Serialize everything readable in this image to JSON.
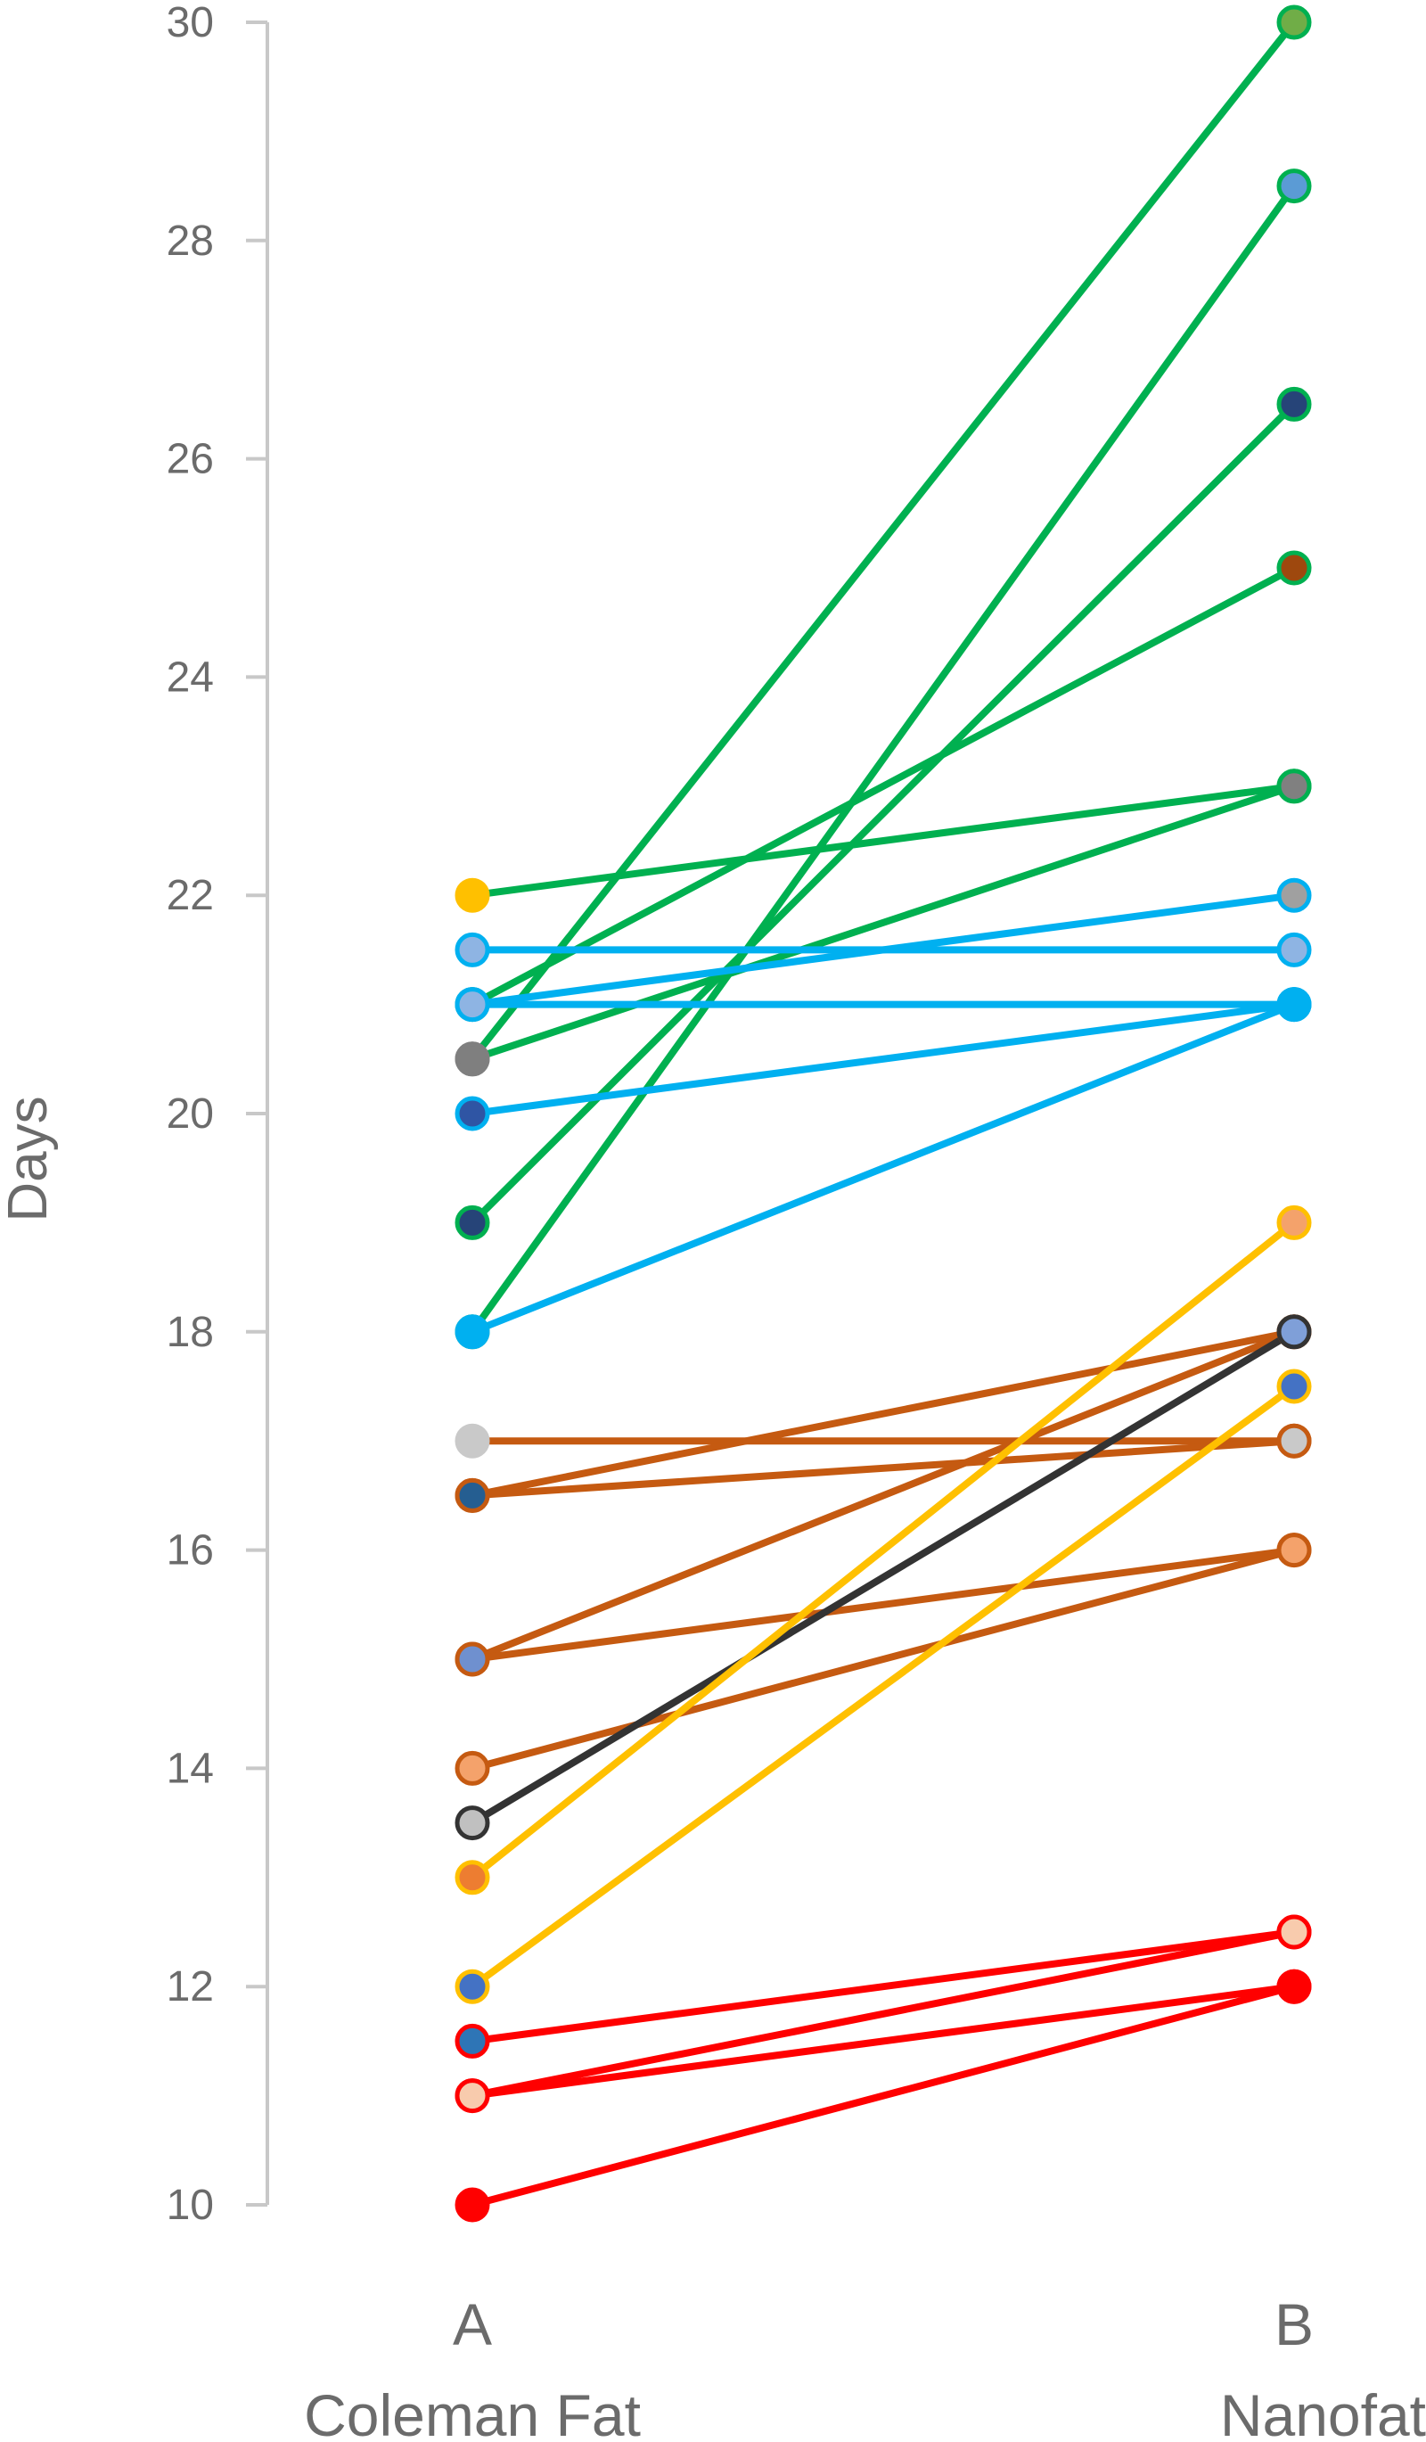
{
  "chart_data": {
    "type": "line",
    "title": "",
    "xlabel": "",
    "ylabel": "Days",
    "ylim": [
      10,
      30
    ],
    "yticks": [
      10,
      12,
      14,
      16,
      18,
      20,
      22,
      24,
      26,
      28,
      30
    ],
    "categories": [
      {
        "letter": "A",
        "name": "Coleman Fat"
      },
      {
        "letter": "B",
        "name": "Nanofat"
      }
    ],
    "grid": false,
    "legend": "none",
    "series": [
      {
        "values": [
          22,
          23
        ],
        "line_color": "#00b050",
        "start_fill": "#ffc000",
        "start_edge": "#ffc000",
        "end_fill": "#808080",
        "end_edge": "#00b050"
      },
      {
        "values": [
          21,
          25
        ],
        "line_color": "#00b050",
        "start_fill": "#a0a0a0",
        "start_edge": "#00b050",
        "end_fill": "#9e480e",
        "end_edge": "#00b050"
      },
      {
        "values": [
          20.5,
          30
        ],
        "line_color": "#00b050",
        "start_fill": "#7f7f7f",
        "start_edge": "#7f7f7f",
        "end_fill": "#70ad47",
        "end_edge": "#00b050"
      },
      {
        "values": [
          20.5,
          23
        ],
        "line_color": "#00b050",
        "start_fill": "#7f7f7f",
        "start_edge": "#7f7f7f",
        "end_fill": "#808080",
        "end_edge": "#00b050"
      },
      {
        "values": [
          19,
          26.5
        ],
        "line_color": "#00b050",
        "start_fill": "#264478",
        "start_edge": "#00b050",
        "end_fill": "#264478",
        "end_edge": "#00b050"
      },
      {
        "values": [
          18,
          28.5
        ],
        "line_color": "#00b050",
        "start_fill": "#00b0f0",
        "start_edge": "#00b050",
        "end_fill": "#5b9bd5",
        "end_edge": "#00b050"
      },
      {
        "values": [
          21.5,
          21.5
        ],
        "line_color": "#00b0f0",
        "start_fill": "#8eb4e3",
        "start_edge": "#00b0f0",
        "end_fill": "#8eb4e3",
        "end_edge": "#00b0f0"
      },
      {
        "values": [
          21,
          22
        ],
        "line_color": "#00b0f0",
        "start_fill": "#a0a0a0",
        "start_edge": "#00b0f0",
        "end_fill": "#a0a0a0",
        "end_edge": "#00b0f0"
      },
      {
        "values": [
          21,
          21
        ],
        "line_color": "#00b0f0",
        "start_fill": "#8eb4e3",
        "start_edge": "#00b0f0",
        "end_fill": "#00b0f0",
        "end_edge": "#00b0f0"
      },
      {
        "values": [
          20,
          21
        ],
        "line_color": "#00b0f0",
        "start_fill": "#2f55a4",
        "start_edge": "#00b0f0",
        "end_fill": "#00b0f0",
        "end_edge": "#00b0f0"
      },
      {
        "values": [
          18,
          21
        ],
        "line_color": "#00b0f0",
        "start_fill": "#00b0f0",
        "start_edge": "#00b0f0",
        "end_fill": "#00b0f0",
        "end_edge": "#00b0f0"
      },
      {
        "values": [
          17,
          17
        ],
        "line_color": "#c55a11",
        "start_fill": "#c9c9c9",
        "start_edge": "#c9c9c9",
        "end_fill": "#c9c9c9",
        "end_edge": "#c55a11"
      },
      {
        "values": [
          16.5,
          18
        ],
        "line_color": "#c55a11",
        "start_fill": "#255e91",
        "start_edge": "#c55a11",
        "end_fill": "#7f9fd8",
        "end_edge": "#c55a11"
      },
      {
        "values": [
          16.5,
          17
        ],
        "line_color": "#c55a11",
        "start_fill": "#255e91",
        "start_edge": "#c55a11",
        "end_fill": "#c9c9c9",
        "end_edge": "#c55a11"
      },
      {
        "values": [
          15,
          18
        ],
        "line_color": "#c55a11",
        "start_fill": "#6f90cf",
        "start_edge": "#c55a11",
        "end_fill": "#7f9fd8",
        "end_edge": "#c55a11"
      },
      {
        "values": [
          15,
          16
        ],
        "line_color": "#c55a11",
        "start_fill": "#6f90cf",
        "start_edge": "#c55a11",
        "end_fill": "#f4a26b",
        "end_edge": "#c55a11"
      },
      {
        "values": [
          14,
          16
        ],
        "line_color": "#c55a11",
        "start_fill": "#f4a26b",
        "start_edge": "#c55a11",
        "end_fill": "#f4a26b",
        "end_edge": "#c55a11"
      },
      {
        "values": [
          13.5,
          18
        ],
        "line_color": "#333333",
        "start_fill": "#c0c0c0",
        "start_edge": "#333333",
        "end_fill": "#7f9fd8",
        "end_edge": "#333333"
      },
      {
        "values": [
          13,
          19
        ],
        "line_color": "#ffc000",
        "start_fill": "#ed7d31",
        "start_edge": "#ffc000",
        "end_fill": "#f4a26b",
        "end_edge": "#ffc000"
      },
      {
        "values": [
          12,
          17.5
        ],
        "line_color": "#ffc000",
        "start_fill": "#4472c4",
        "start_edge": "#ffc000",
        "end_fill": "#4472c4",
        "end_edge": "#ffc000"
      },
      {
        "values": [
          11.5,
          12.5
        ],
        "line_color": "#ff0000",
        "start_fill": "#2e75b6",
        "start_edge": "#ff0000",
        "end_fill": "#f8cbad",
        "end_edge": "#ff0000"
      },
      {
        "values": [
          11,
          12.5
        ],
        "line_color": "#ff0000",
        "start_fill": "#f8cbad",
        "start_edge": "#ff0000",
        "end_fill": "#f8cbad",
        "end_edge": "#ff0000"
      },
      {
        "values": [
          11,
          12
        ],
        "line_color": "#ff0000",
        "start_fill": "#f8cbad",
        "start_edge": "#ff0000",
        "end_fill": "#ff0000",
        "end_edge": "#ff0000"
      },
      {
        "values": [
          10,
          12
        ],
        "line_color": "#ff0000",
        "start_fill": "#ff0000",
        "start_edge": "#ff0000",
        "end_fill": "#ff0000",
        "end_edge": "#ff0000"
      }
    ]
  }
}
